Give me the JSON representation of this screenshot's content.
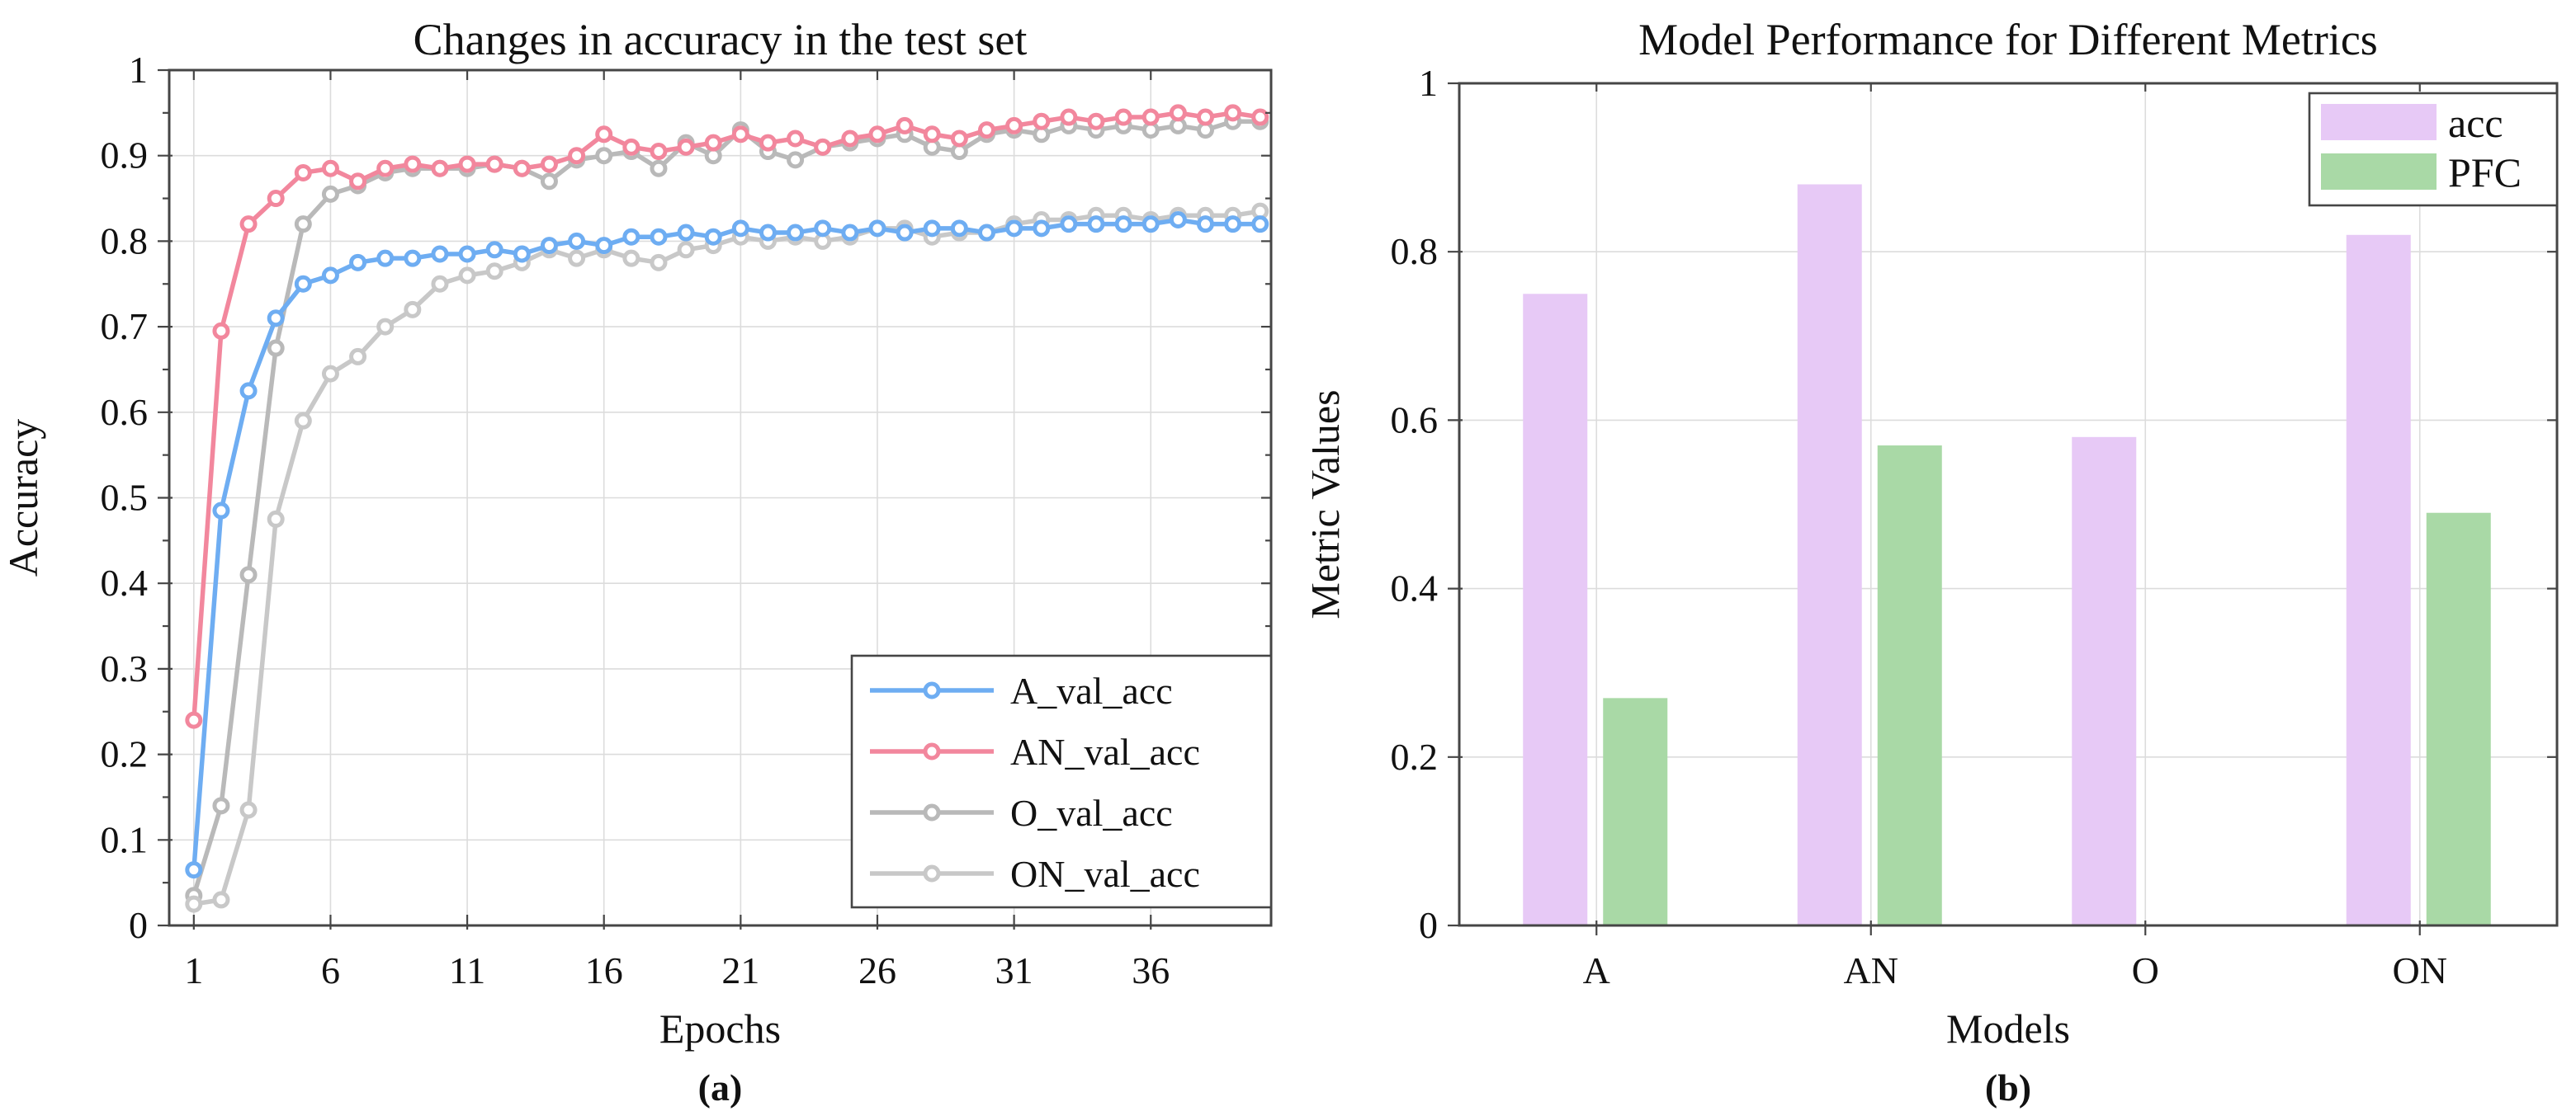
{
  "figure": {
    "background": "#FFFFFF",
    "frame_color": "#454545",
    "grid_color": "#DCDCDC",
    "text_color": "#111111"
  },
  "chart_data": [
    {
      "id": "accuracy-line-chart",
      "type": "line",
      "title": "Changes in accuracy in the test set",
      "xlabel": "Epochs",
      "ylabel": "Accuracy",
      "caption": "(a)",
      "xlim": [
        0.1,
        40.4
      ],
      "ylim": [
        0,
        1
      ],
      "xticks": [
        1,
        6,
        11,
        16,
        21,
        26,
        31,
        36
      ],
      "xtick_labels": [
        "1",
        "6",
        "11",
        "16",
        "21",
        "26",
        "31",
        "36"
      ],
      "yticks": [
        0,
        0.1,
        0.2,
        0.3,
        0.4,
        0.5,
        0.6,
        0.7,
        0.8,
        0.9,
        1
      ],
      "ytick_labels": [
        "0",
        "0.1",
        "0.2",
        "0.3",
        "0.4",
        "0.5",
        "0.6",
        "0.7",
        "0.8",
        "0.9",
        "1"
      ],
      "y_minor_step": 0.05,
      "grid": true,
      "legend_position": "bottom-right",
      "x": [
        1,
        2,
        3,
        4,
        5,
        6,
        7,
        8,
        9,
        10,
        11,
        12,
        13,
        14,
        15,
        16,
        17,
        18,
        19,
        20,
        21,
        22,
        23,
        24,
        25,
        26,
        27,
        28,
        29,
        30,
        31,
        32,
        33,
        34,
        35,
        36,
        37,
        38,
        39,
        40
      ],
      "series": [
        {
          "name": "O_val_acc",
          "color": "#B9B9B9",
          "values": [
            0.035,
            0.14,
            0.41,
            0.675,
            0.82,
            0.855,
            0.865,
            0.88,
            0.885,
            0.885,
            0.885,
            0.89,
            0.885,
            0.87,
            0.895,
            0.9,
            0.905,
            0.885,
            0.915,
            0.9,
            0.93,
            0.905,
            0.895,
            0.91,
            0.915,
            0.92,
            0.925,
            0.91,
            0.905,
            0.925,
            0.93,
            0.925,
            0.935,
            0.93,
            0.935,
            0.93,
            0.935,
            0.93,
            0.94,
            0.94
          ]
        },
        {
          "name": "ON_val_acc",
          "color": "#C8C8C8",
          "values": [
            0.025,
            0.03,
            0.135,
            0.475,
            0.59,
            0.645,
            0.665,
            0.7,
            0.72,
            0.75,
            0.76,
            0.765,
            0.775,
            0.79,
            0.78,
            0.79,
            0.78,
            0.775,
            0.79,
            0.795,
            0.805,
            0.8,
            0.805,
            0.8,
            0.805,
            0.815,
            0.815,
            0.805,
            0.81,
            0.81,
            0.82,
            0.825,
            0.825,
            0.83,
            0.83,
            0.825,
            0.83,
            0.83,
            0.83,
            0.835
          ]
        },
        {
          "name": "A_val_acc",
          "color": "#6EADF2",
          "values": [
            0.065,
            0.485,
            0.625,
            0.71,
            0.75,
            0.76,
            0.775,
            0.78,
            0.78,
            0.785,
            0.785,
            0.79,
            0.785,
            0.795,
            0.8,
            0.795,
            0.805,
            0.805,
            0.81,
            0.805,
            0.815,
            0.81,
            0.81,
            0.815,
            0.81,
            0.815,
            0.81,
            0.815,
            0.815,
            0.81,
            0.815,
            0.815,
            0.82,
            0.82,
            0.82,
            0.82,
            0.825,
            0.82,
            0.82,
            0.82
          ]
        },
        {
          "name": "AN_val_acc",
          "color": "#F2879D",
          "values": [
            0.24,
            0.695,
            0.82,
            0.85,
            0.88,
            0.885,
            0.87,
            0.885,
            0.89,
            0.885,
            0.89,
            0.89,
            0.885,
            0.89,
            0.9,
            0.925,
            0.91,
            0.905,
            0.91,
            0.915,
            0.925,
            0.915,
            0.92,
            0.91,
            0.92,
            0.925,
            0.935,
            0.925,
            0.92,
            0.93,
            0.935,
            0.94,
            0.945,
            0.94,
            0.945,
            0.945,
            0.95,
            0.945,
            0.95,
            0.945
          ]
        }
      ],
      "legend_order": [
        "A_val_acc",
        "AN_val_acc",
        "O_val_acc",
        "ON_val_acc"
      ]
    },
    {
      "id": "metrics-bar-chart",
      "type": "bar",
      "title": "Model Performance for Different Metrics",
      "xlabel": "Models",
      "ylabel": "Metric Values",
      "caption": "(b)",
      "categories": [
        "A",
        "AN",
        "O",
        "ON"
      ],
      "ylim": [
        0,
        1
      ],
      "yticks": [
        0,
        0.2,
        0.4,
        0.6,
        0.8,
        1
      ],
      "ytick_labels": [
        "0",
        "0.2",
        "0.4",
        "0.6",
        "0.8",
        "1"
      ],
      "grid": true,
      "legend_position": "top-right",
      "series": [
        {
          "name": "acc",
          "color": "#E7C9F6",
          "values": [
            0.75,
            0.88,
            0.58,
            0.82
          ]
        },
        {
          "name": "PFC",
          "color": "#A9D9A6",
          "values": [
            0.27,
            0.57,
            0,
            0.49
          ]
        }
      ]
    }
  ]
}
